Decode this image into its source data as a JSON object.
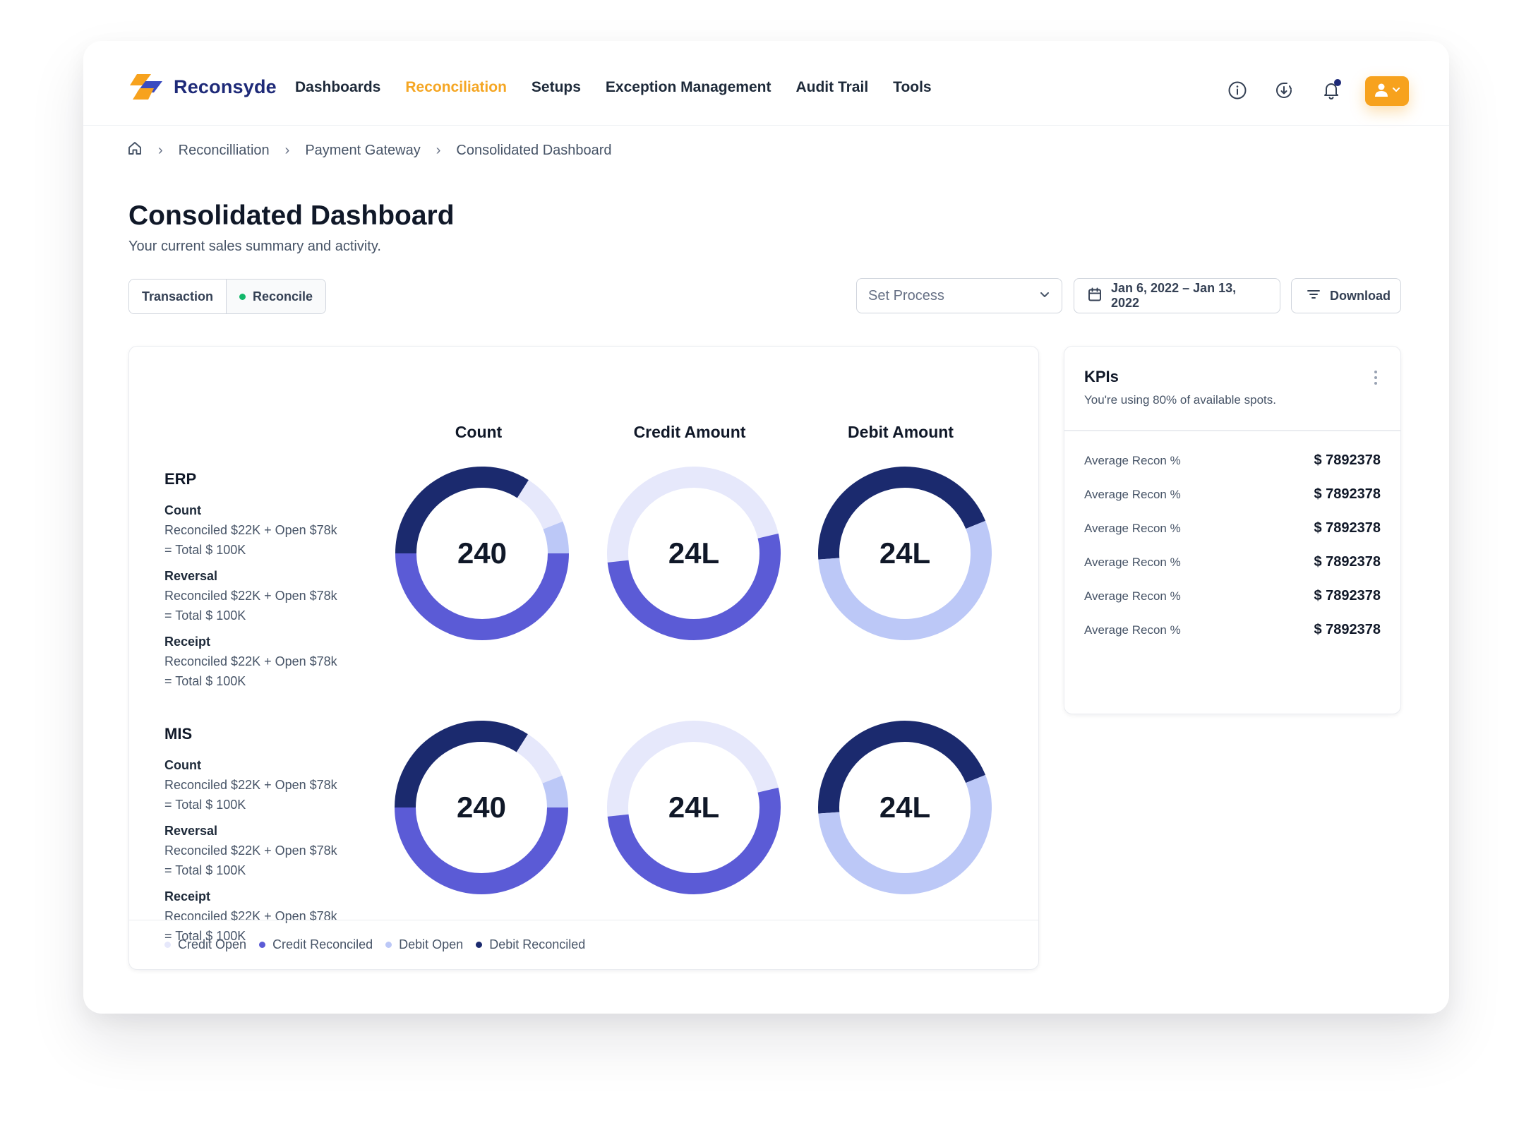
{
  "app": {
    "brand": "Reconsyde"
  },
  "nav": {
    "items": [
      {
        "label": "Dashboards"
      },
      {
        "label": "Reconciliation"
      },
      {
        "label": "Setups"
      },
      {
        "label": "Exception Management"
      },
      {
        "label": "Audit Trail"
      },
      {
        "label": "Tools"
      }
    ],
    "active": "Reconciliation"
  },
  "breadcrumb": [
    "Reconcilliation",
    "Payment Gateway",
    "Consolidated Dashboard"
  ],
  "page": {
    "title": "Consolidated Dashboard",
    "subtitle": "Your current sales summary and activity."
  },
  "toolbar": {
    "tabs": [
      {
        "label": "Transaction"
      },
      {
        "label": "Reconcile"
      }
    ],
    "process_placeholder": "Set Process",
    "date_range": "Jan 6, 2022 – Jan 13, 2022",
    "download_label": "Download"
  },
  "columns": [
    "Count",
    "Credit Amount",
    "Debit Amount"
  ],
  "groups": [
    {
      "title": "ERP",
      "metrics": [
        {
          "name": "Count",
          "line1": "Reconciled $22K + Open $78k",
          "line2": "= Total $ 100K"
        },
        {
          "name": "Reversal",
          "line1": "Reconciled $22K + Open $78k",
          "line2": "= Total $ 100K"
        },
        {
          "name": "Receipt",
          "line1": "Reconciled $22K + Open $78k",
          "line2": "= Total $ 100K"
        }
      ],
      "donut_values": [
        "240",
        "24L",
        "24L"
      ]
    },
    {
      "title": "MIS",
      "metrics": [
        {
          "name": "Count",
          "line1": "Reconciled $22K + Open $78k",
          "line2": "= Total $ 100K"
        },
        {
          "name": "Reversal",
          "line1": "Reconciled $22K + Open $78k",
          "line2": "= Total $ 100K"
        },
        {
          "name": "Receipt",
          "line1": "Reconciled $22K + Open $78k",
          "line2": "= Total $ 100K"
        }
      ],
      "donut_values": [
        "240",
        "24L",
        "24L"
      ]
    }
  ],
  "donut_segments": {
    "count": [
      {
        "category": "Debit Reconciled",
        "pct": 34
      },
      {
        "category": "Credit Open",
        "pct": 10
      },
      {
        "category": "Debit Open",
        "pct": 6
      },
      {
        "category": "Credit Reconciled",
        "pct": 50
      }
    ],
    "credit": [
      {
        "category": "Credit Open",
        "pct": 48
      },
      {
        "category": "Credit Reconciled",
        "pct": 52
      }
    ],
    "debit": [
      {
        "category": "Debit Reconciled",
        "pct": 45
      },
      {
        "category": "Debit Open",
        "pct": 55
      }
    ]
  },
  "legend": [
    {
      "label": "Credit Open",
      "color": "#e6e8fb"
    },
    {
      "label": "Credit Reconciled",
      "color": "#5b5bd6"
    },
    {
      "label": "Debit Open",
      "color": "#bcc8f7"
    },
    {
      "label": "Debit Reconciled",
      "color": "#1b2a6e"
    }
  ],
  "kpis": {
    "title": "KPIs",
    "subtitle": "You're using 80% of available spots.",
    "rows": [
      {
        "label": "Average Recon %",
        "value": "$ 7892378"
      },
      {
        "label": "Average Recon %",
        "value": "$ 7892378"
      },
      {
        "label": "Average Recon %",
        "value": "$ 7892378"
      },
      {
        "label": "Average Recon %",
        "value": "$ 7892378"
      },
      {
        "label": "Average Recon %",
        "value": "$ 7892378"
      },
      {
        "label": "Average Recon %",
        "value": "$ 7892378"
      }
    ]
  },
  "colors": {
    "accent": "#f5a623",
    "brand": "#1e2a78",
    "credit_open": "#e6e8fb",
    "credit_reconciled": "#5b5bd6",
    "debit_open": "#bcc8f7",
    "debit_reconciled": "#1b2a6e"
  },
  "icons": [
    "home-icon",
    "info-icon",
    "download-clock-icon",
    "bell-icon",
    "user-icon",
    "calendar-icon",
    "filter-lines-icon",
    "chevron-down-icon",
    "more-vertical-icon"
  ]
}
